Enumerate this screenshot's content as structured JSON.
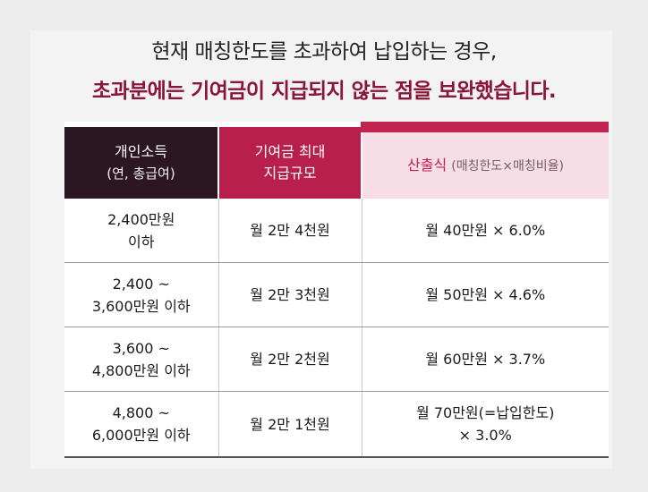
{
  "headline": {
    "line1": "현재 매칭한도를 초과하여 납입하는 경우,",
    "line2": "초과분에는 기여금이 지급되지 않는 점을 보완했습니다."
  },
  "table": {
    "headers": {
      "income_line1": "개인소득",
      "income_line2": "(연, 총급여)",
      "max_line1": "기여금 최대",
      "max_line2": "지급규모",
      "formula_label": "산출식",
      "formula_note": "(매칭한도×매칭비율)"
    },
    "rows": [
      {
        "income_line1": "2,400만원",
        "income_line2": "이하",
        "max": "월 2만 4천원",
        "formula_line1": "월 40만원 × 6.0%",
        "formula_line2": ""
      },
      {
        "income_line1": "2,400 ~",
        "income_line2": "3,600만원 이하",
        "max": "월 2만 3천원",
        "formula_line1": "월 50만원 × 4.6%",
        "formula_line2": ""
      },
      {
        "income_line1": "3,600 ~",
        "income_line2": "4,800만원 이하",
        "max": "월 2만 2천원",
        "formula_line1": "월 60만원 × 3.7%",
        "formula_line2": ""
      },
      {
        "income_line1": "4,800 ~",
        "income_line2": "6,000만원 이하",
        "max": "월 2만 1천원",
        "formula_line1": "월 70만원(=납입한도)",
        "formula_line2": "× 3.0%"
      }
    ]
  }
}
